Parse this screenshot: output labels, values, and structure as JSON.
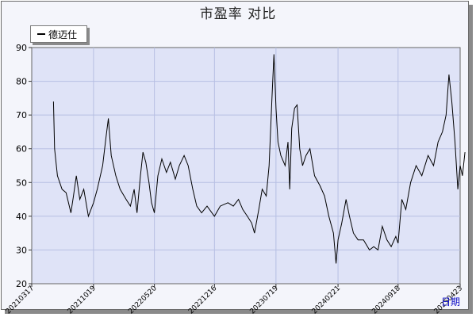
{
  "title": "市盈率 对比",
  "chart_data": {
    "type": "line",
    "title": "市盈率 对比",
    "xlabel": "日期",
    "ylabel": "",
    "ylim": [
      20,
      90
    ],
    "yticks": [
      20,
      30,
      40,
      50,
      60,
      70,
      80,
      90
    ],
    "xticks": [
      "20210317",
      "20211019",
      "20220520",
      "20221216",
      "20230719",
      "20240221",
      "20240918",
      "20250423"
    ],
    "grid": true,
    "legend": "top-left",
    "series": [
      {
        "name": "德迈仕",
        "color": "#000000",
        "points": [
          [
            "2021-06-01",
            74
          ],
          [
            "2021-06-05",
            60
          ],
          [
            "2021-06-15",
            52
          ],
          [
            "2021-07-01",
            48
          ],
          [
            "2021-07-15",
            47
          ],
          [
            "2021-08-01",
            41
          ],
          [
            "2021-08-10",
            46
          ],
          [
            "2021-08-20",
            52
          ],
          [
            "2021-09-01",
            45
          ],
          [
            "2021-09-15",
            48
          ],
          [
            "2021-10-01",
            40
          ],
          [
            "2021-10-19",
            44
          ],
          [
            "2021-11-01",
            48
          ],
          [
            "2021-11-20",
            55
          ],
          [
            "2021-12-01",
            63
          ],
          [
            "2021-12-10",
            69
          ],
          [
            "2021-12-20",
            58
          ],
          [
            "2022-01-05",
            52
          ],
          [
            "2022-01-20",
            48
          ],
          [
            "2022-02-10",
            45
          ],
          [
            "2022-02-25",
            43
          ],
          [
            "2022-03-10",
            48
          ],
          [
            "2022-03-20",
            41
          ],
          [
            "2022-04-01",
            52
          ],
          [
            "2022-04-10",
            59
          ],
          [
            "2022-04-20",
            56
          ],
          [
            "2022-05-01",
            50
          ],
          [
            "2022-05-10",
            44
          ],
          [
            "2022-05-20",
            41
          ],
          [
            "2022-06-01",
            52
          ],
          [
            "2022-06-15",
            57
          ],
          [
            "2022-07-01",
            53
          ],
          [
            "2022-07-15",
            56
          ],
          [
            "2022-08-01",
            51
          ],
          [
            "2022-08-15",
            55
          ],
          [
            "2022-09-01",
            58
          ],
          [
            "2022-09-15",
            55
          ],
          [
            "2022-10-01",
            48
          ],
          [
            "2022-10-15",
            43
          ],
          [
            "2022-11-01",
            41
          ],
          [
            "2022-11-20",
            43
          ],
          [
            "2022-12-16",
            40
          ],
          [
            "2023-01-05",
            43
          ],
          [
            "2023-02-01",
            44
          ],
          [
            "2023-02-20",
            43
          ],
          [
            "2023-03-10",
            45
          ],
          [
            "2023-03-25",
            42
          ],
          [
            "2023-04-10",
            40
          ],
          [
            "2023-04-25",
            38
          ],
          [
            "2023-05-05",
            35
          ],
          [
            "2023-05-20",
            42
          ],
          [
            "2023-06-01",
            48
          ],
          [
            "2023-06-15",
            46
          ],
          [
            "2023-06-25",
            55
          ],
          [
            "2023-07-05",
            75
          ],
          [
            "2023-07-12",
            88
          ],
          [
            "2023-07-19",
            72
          ],
          [
            "2023-07-26",
            62
          ],
          [
            "2023-08-05",
            58
          ],
          [
            "2023-08-20",
            55
          ],
          [
            "2023-08-30",
            62
          ],
          [
            "2023-09-05",
            48
          ],
          [
            "2023-09-12",
            66
          ],
          [
            "2023-09-22",
            72
          ],
          [
            "2023-10-01",
            73
          ],
          [
            "2023-10-10",
            60
          ],
          [
            "2023-10-20",
            55
          ],
          [
            "2023-11-01",
            58
          ],
          [
            "2023-11-15",
            60
          ],
          [
            "2023-12-01",
            52
          ],
          [
            "2023-12-20",
            49
          ],
          [
            "2024-01-05",
            46
          ],
          [
            "2024-01-20",
            40
          ],
          [
            "2024-02-05",
            35
          ],
          [
            "2024-02-14",
            26
          ],
          [
            "2024-02-21",
            33
          ],
          [
            "2024-03-05",
            38
          ],
          [
            "2024-03-20",
            45
          ],
          [
            "2024-04-01",
            40
          ],
          [
            "2024-04-15",
            35
          ],
          [
            "2024-05-01",
            33
          ],
          [
            "2024-05-20",
            33
          ],
          [
            "2024-06-10",
            30
          ],
          [
            "2024-06-25",
            31
          ],
          [
            "2024-07-10",
            30
          ],
          [
            "2024-07-25",
            37
          ],
          [
            "2024-08-10",
            33
          ],
          [
            "2024-08-25",
            31
          ],
          [
            "2024-09-10",
            34
          ],
          [
            "2024-09-18",
            32
          ],
          [
            "2024-10-01",
            45
          ],
          [
            "2024-10-15",
            42
          ],
          [
            "2024-11-01",
            50
          ],
          [
            "2024-11-20",
            55
          ],
          [
            "2024-12-10",
            52
          ],
          [
            "2025-01-01",
            58
          ],
          [
            "2025-01-20",
            55
          ],
          [
            "2025-02-05",
            62
          ],
          [
            "2025-02-20",
            65
          ],
          [
            "2025-03-05",
            70
          ],
          [
            "2025-03-15",
            82
          ],
          [
            "2025-03-25",
            74
          ],
          [
            "2025-04-05",
            62
          ],
          [
            "2025-04-15",
            48
          ],
          [
            "2025-04-23",
            55
          ],
          [
            "2025-05-01",
            52
          ],
          [
            "2025-05-10",
            59
          ]
        ]
      }
    ]
  }
}
